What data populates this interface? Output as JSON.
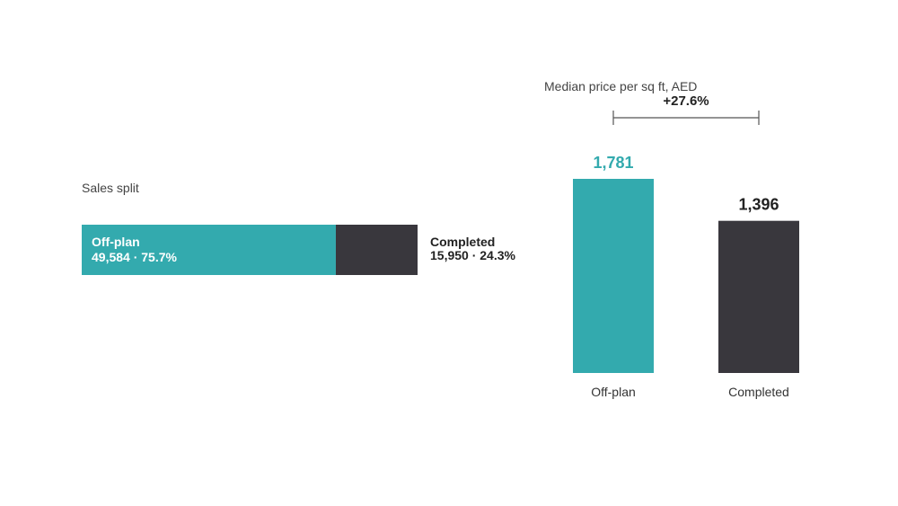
{
  "colors": {
    "offplan": "#33aaae",
    "completed": "#39373d",
    "text_dark": "#222222",
    "text_muted": "#444444",
    "bracket": "#555555"
  },
  "chart_data": [
    {
      "type": "bar",
      "orientation": "horizontal-stacked",
      "title": "Sales split",
      "segments": [
        {
          "name": "Off-plan",
          "value": 49584,
          "value_label": "49,584",
          "percent_label": "75.7%"
        },
        {
          "name": "Completed",
          "value": 15950,
          "value_label": "15,950",
          "percent_label": "24.3%"
        }
      ],
      "separator": " · "
    },
    {
      "type": "bar",
      "title": "Median price per sq ft, AED",
      "categories": [
        "Off-plan",
        "Completed"
      ],
      "values": [
        1781,
        1396
      ],
      "value_labels": [
        "1,781",
        "1,396"
      ],
      "difference_label": "+27.6%",
      "grid": false
    }
  ]
}
